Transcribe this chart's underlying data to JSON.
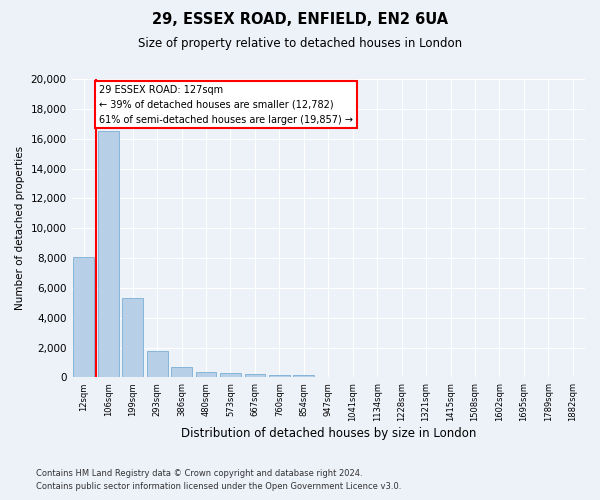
{
  "title1": "29, ESSEX ROAD, ENFIELD, EN2 6UA",
  "title2": "Size of property relative to detached houses in London",
  "xlabel": "Distribution of detached houses by size in London",
  "ylabel": "Number of detached properties",
  "categories": [
    "12sqm",
    "106sqm",
    "199sqm",
    "293sqm",
    "386sqm",
    "480sqm",
    "573sqm",
    "667sqm",
    "760sqm",
    "854sqm",
    "947sqm",
    "1041sqm",
    "1134sqm",
    "1228sqm",
    "1321sqm",
    "1415sqm",
    "1508sqm",
    "1602sqm",
    "1695sqm",
    "1789sqm",
    "1882sqm"
  ],
  "values": [
    8100,
    16500,
    5300,
    1750,
    700,
    380,
    280,
    220,
    180,
    150,
    0,
    0,
    0,
    0,
    0,
    0,
    0,
    0,
    0,
    0,
    0
  ],
  "bar_color": "#b8cfe8",
  "bar_edge_color": "#7aafd4",
  "ylim": [
    0,
    20000
  ],
  "yticks": [
    0,
    2000,
    4000,
    6000,
    8000,
    10000,
    12000,
    14000,
    16000,
    18000,
    20000
  ],
  "annotation_text": "29 ESSEX ROAD: 127sqm\n← 39% of detached houses are smaller (12,782)\n61% of semi-detached houses are larger (19,857) →",
  "footer1": "Contains HM Land Registry data © Crown copyright and database right 2024.",
  "footer2": "Contains public sector information licensed under the Open Government Licence v3.0.",
  "bg_color": "#edf1f8",
  "grid_color": "#ffffff"
}
